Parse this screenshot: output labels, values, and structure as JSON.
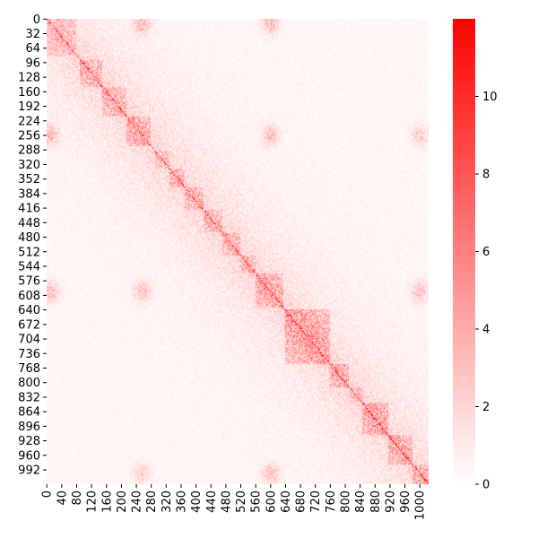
{
  "chart_data": {
    "type": "heatmap",
    "title": "",
    "xlabel": "",
    "ylabel": "",
    "n_bins": 1024,
    "x_ticks": [
      0,
      40,
      80,
      120,
      160,
      200,
      240,
      280,
      320,
      360,
      400,
      440,
      480,
      520,
      560,
      600,
      640,
      680,
      720,
      760,
      800,
      840,
      880,
      920,
      960,
      1000
    ],
    "y_ticks": [
      0,
      32,
      64,
      96,
      128,
      160,
      192,
      224,
      256,
      288,
      320,
      352,
      384,
      416,
      448,
      480,
      512,
      544,
      576,
      608,
      640,
      672,
      704,
      736,
      768,
      800,
      832,
      864,
      896,
      928,
      960,
      992
    ],
    "colorbar": {
      "range": [
        0,
        12
      ],
      "ticks": [
        0,
        2,
        4,
        6,
        8,
        10
      ],
      "low_color": "#ffffff",
      "high_color": "#ff0000"
    },
    "domains": [
      {
        "start": 0,
        "end": 80,
        "value": 2.0
      },
      {
        "start": 90,
        "end": 150,
        "value": 2.5
      },
      {
        "start": 150,
        "end": 215,
        "value": 2.5
      },
      {
        "start": 215,
        "end": 280,
        "value": 3.0
      },
      {
        "start": 290,
        "end": 330,
        "value": 2.0
      },
      {
        "start": 330,
        "end": 370,
        "value": 2.5
      },
      {
        "start": 370,
        "end": 420,
        "value": 2.5
      },
      {
        "start": 420,
        "end": 470,
        "value": 2.5
      },
      {
        "start": 470,
        "end": 520,
        "value": 2.5
      },
      {
        "start": 520,
        "end": 560,
        "value": 2.5
      },
      {
        "start": 560,
        "end": 635,
        "value": 3.0
      },
      {
        "start": 640,
        "end": 760,
        "value": 3.5
      },
      {
        "start": 760,
        "end": 810,
        "value": 3.0
      },
      {
        "start": 810,
        "end": 845,
        "value": 2.0
      },
      {
        "start": 845,
        "end": 915,
        "value": 3.5
      },
      {
        "start": 915,
        "end": 980,
        "value": 3.0
      },
      {
        "start": 980,
        "end": 1024,
        "value": 3.0
      }
    ],
    "hotspots": [
      {
        "x": 256,
        "y": 10,
        "value": 3.5
      },
      {
        "x": 600,
        "y": 10,
        "value": 3.5
      },
      {
        "x": 10,
        "y": 256,
        "value": 3.5
      },
      {
        "x": 600,
        "y": 256,
        "value": 3.0
      },
      {
        "x": 256,
        "y": 600,
        "value": 3.0
      },
      {
        "x": 10,
        "y": 600,
        "value": 3.5
      },
      {
        "x": 1000,
        "y": 256,
        "value": 2.5
      },
      {
        "x": 1000,
        "y": 600,
        "value": 3.0
      },
      {
        "x": 256,
        "y": 1000,
        "value": 2.5
      },
      {
        "x": 600,
        "y": 1000,
        "value": 3.0
      }
    ]
  }
}
